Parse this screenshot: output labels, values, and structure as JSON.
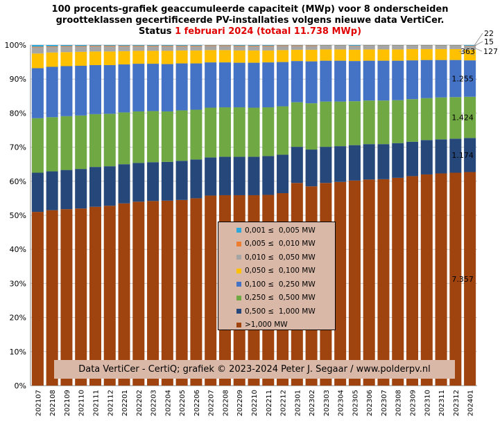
{
  "title": {
    "line1": "100 procents-grafiek geaccumuleerde capaciteit (MWp) voor 8 onderscheiden",
    "line2": "grootteklassen gecertificeerde PV-installaties volgens nieuwe data VertiCer.",
    "line3_prefix": "Status ",
    "line3_date": "1 februari 2024",
    "line3_total": "(totaal 11.738 MWp)"
  },
  "credit": "Data VertiCer - CertiQ; grafiek © 2023-2024 Peter J. Segaar / www.polderpv.nl",
  "chart_data": {
    "type": "bar",
    "stacked": true,
    "percent_stacked": true,
    "categories": [
      "202107",
      "202108",
      "202109",
      "202110",
      "202111",
      "202112",
      "202201",
      "202202",
      "202203",
      "202204",
      "202205",
      "202206",
      "202207",
      "202208",
      "202209",
      "202210",
      "202211",
      "202212",
      "202301",
      "202302",
      "202303",
      "202304",
      "202305",
      "202306",
      "202307",
      "202308",
      "202309",
      "202310",
      "202311",
      "202312",
      "202401"
    ],
    "y_ticks": [
      "0%",
      "10%",
      "20%",
      "30%",
      "40%",
      "50%",
      "60%",
      "70%",
      "80%",
      "90%",
      "100%"
    ],
    "ylim": [
      0,
      100
    ],
    "series": [
      {
        "name": ">1,000 MW",
        "color": "#a0440f",
        "values": [
          51.0,
          51.5,
          51.8,
          52.0,
          52.5,
          52.8,
          53.5,
          54.0,
          54.2,
          54.3,
          54.5,
          55.0,
          55.8,
          55.9,
          55.9,
          55.9,
          56.0,
          56.5,
          59.5,
          58.5,
          59.5,
          59.8,
          60.2,
          60.5,
          60.6,
          61.0,
          61.5,
          62.0,
          62.3,
          62.5,
          62.7
        ]
      },
      {
        "name": "0,500 ≤  1,000 MW",
        "color": "#26477a",
        "values": [
          11.5,
          11.4,
          11.5,
          11.6,
          11.7,
          11.6,
          11.5,
          11.4,
          11.4,
          11.4,
          11.5,
          11.4,
          11.2,
          11.3,
          11.3,
          11.3,
          11.4,
          11.3,
          10.6,
          10.8,
          10.6,
          10.5,
          10.4,
          10.4,
          10.3,
          10.2,
          10.1,
          10.1,
          10.0,
          10.0,
          10.0
        ]
      },
      {
        "name": "0,250 ≤  0,500 MW",
        "color": "#70a844",
        "values": [
          16.0,
          15.9,
          15.8,
          15.7,
          15.5,
          15.4,
          15.2,
          15.1,
          15.0,
          14.8,
          14.8,
          14.6,
          14.6,
          14.5,
          14.5,
          14.4,
          14.3,
          14.2,
          13.1,
          13.6,
          13.3,
          13.1,
          12.9,
          12.8,
          12.8,
          12.6,
          12.5,
          12.3,
          12.3,
          12.2,
          12.1
        ]
      },
      {
        "name": "0,100 ≤  0,250 MW",
        "color": "#4472c4",
        "values": [
          14.7,
          14.8,
          14.7,
          14.6,
          14.4,
          14.3,
          14.1,
          14.0,
          13.9,
          13.9,
          13.8,
          13.6,
          13.3,
          13.2,
          13.1,
          13.2,
          13.2,
          13.0,
          12.1,
          12.3,
          12.0,
          12.0,
          11.8,
          11.7,
          11.7,
          11.6,
          11.4,
          11.2,
          11.0,
          10.9,
          10.7
        ]
      },
      {
        "name": "0,050 ≤  0,100 MW",
        "color": "#ffc000",
        "values": [
          4.3,
          4.2,
          4.1,
          4.1,
          4.0,
          4.0,
          3.9,
          3.8,
          3.8,
          3.9,
          3.8,
          3.8,
          3.6,
          3.6,
          3.6,
          3.6,
          3.5,
          3.5,
          3.3,
          3.4,
          3.3,
          3.3,
          3.3,
          3.3,
          3.3,
          3.3,
          3.3,
          3.2,
          3.2,
          3.2,
          3.1
        ]
      },
      {
        "name": "0,010 ≤  0,050 MW",
        "color": "#a5a5a5",
        "values": [
          1.8,
          1.6,
          1.6,
          1.5,
          1.5,
          1.5,
          1.4,
          1.3,
          1.3,
          1.3,
          1.2,
          1.2,
          1.2,
          1.2,
          1.2,
          1.2,
          1.2,
          1.2,
          1.1,
          1.1,
          1.1,
          1.1,
          1.1,
          1.1,
          1.1,
          1.1,
          1.0,
          1.0,
          1.0,
          1.0,
          1.1
        ]
      },
      {
        "name": "0,005 ≤  0,010 MW",
        "color": "#ed7d31",
        "values": [
          0.2,
          0.2,
          0.2,
          0.2,
          0.2,
          0.2,
          0.2,
          0.2,
          0.2,
          0.2,
          0.2,
          0.2,
          0.2,
          0.2,
          0.2,
          0.2,
          0.2,
          0.2,
          0.2,
          0.2,
          0.1,
          0.1,
          0.1,
          0.1,
          0.1,
          0.1,
          0.1,
          0.1,
          0.1,
          0.1,
          0.1
        ]
      },
      {
        "name": "0,001 ≤  0,005 MW",
        "color": "#2ea8d8",
        "values": [
          0.5,
          0.4,
          0.3,
          0.3,
          0.2,
          0.2,
          0.2,
          0.2,
          0.2,
          0.2,
          0.2,
          0.2,
          0.1,
          0.1,
          0.2,
          0.2,
          0.2,
          0.1,
          0.1,
          0.1,
          0.1,
          0.1,
          0.2,
          0.1,
          0.1,
          0.1,
          0.1,
          0.1,
          0.1,
          0.1,
          0.2
        ]
      }
    ],
    "annotations": [
      "7.357",
      "1.174",
      "1.424",
      "1.255",
      "363",
      "127",
      "15",
      "22"
    ]
  }
}
